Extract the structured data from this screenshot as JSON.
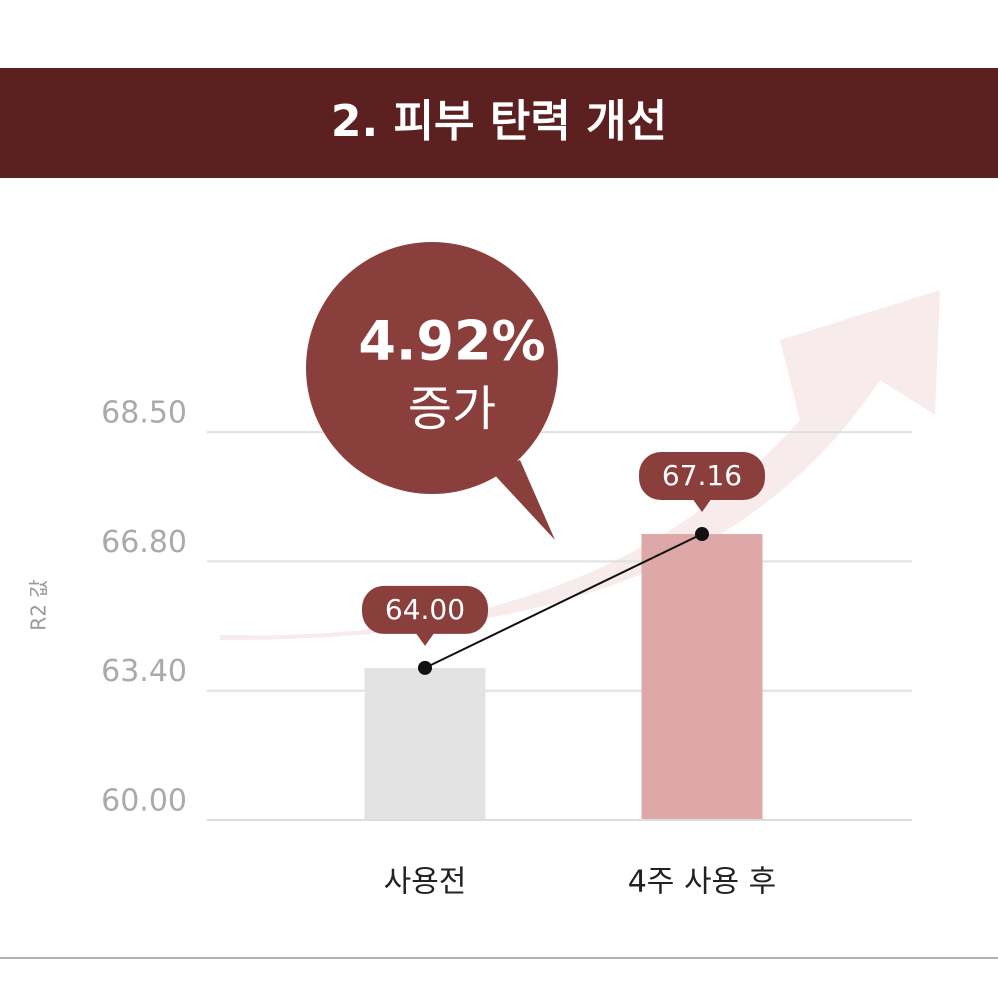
{
  "chart_data": {
    "type": "bar",
    "title": "2. 피부 탄력 개선",
    "ylabel": "R2 값",
    "callout": {
      "value": "4.92%",
      "text": "증가"
    },
    "categories": [
      "사용전",
      "4주 사용 후"
    ],
    "values": [
      64.0,
      67.16
    ],
    "value_labels": [
      "64.00",
      "67.16"
    ],
    "colors": [
      "#e3e3e3",
      "#dfa8a8"
    ],
    "ylim": [
      60,
      68.5
    ],
    "yticks": [
      {
        "value": 60,
        "label": "60.00"
      },
      {
        "value": 63.4,
        "label": "63.40"
      },
      {
        "value": 66.8,
        "label": "66.80"
      },
      {
        "value": 68.5,
        "label": "68.50"
      }
    ],
    "grid": true
  }
}
